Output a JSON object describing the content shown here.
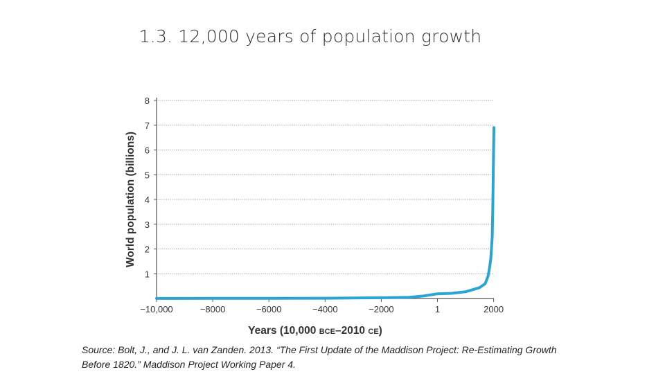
{
  "slide": {
    "title": "1.3. 12,000 years of population growth",
    "source_line1": "Source: Bolt, J., and J. L. van Zanden. 2013. “The First Update of the Maddison Project: Re-Estimating Growth",
    "source_line2": "Before 1820.” Maddison Project Working Paper 4."
  },
  "chart_data": {
    "type": "line",
    "title": "",
    "xlabel_main": "Years (10,000 ",
    "xlabel_bce": "BCE",
    "xlabel_mid": "–2010 ",
    "xlabel_ce": "CE",
    "xlabel_end": ")",
    "ylabel": "World population (billions)",
    "xlim": [
      -10000,
      2010
    ],
    "ylim": [
      0,
      8
    ],
    "x_ticks": [
      -10000,
      -8000,
      -6000,
      -4000,
      -2000,
      1,
      2000
    ],
    "x_tick_labels": [
      "−10,000",
      "−8000",
      "−6000",
      "−4000",
      "−2000",
      "1",
      "2000"
    ],
    "y_ticks": [
      1,
      2,
      3,
      4,
      5,
      6,
      7,
      8
    ],
    "y_tick_labels": [
      "1",
      "2",
      "3",
      "4",
      "5",
      "6",
      "7",
      "8"
    ],
    "grid": true,
    "series": [
      {
        "color": "#2aa4d4",
        "x": [
          -10000,
          -8000,
          -6000,
          -4000,
          -2000,
          -1000,
          -500,
          1,
          500,
          1000,
          1500,
          1700,
          1800,
          1850,
          1900,
          1950,
          1970,
          1990,
          2000,
          2010
        ],
        "y": [
          0.004,
          0.005,
          0.007,
          0.01,
          0.03,
          0.05,
          0.1,
          0.19,
          0.21,
          0.27,
          0.44,
          0.6,
          0.9,
          1.2,
          1.6,
          2.5,
          3.7,
          5.3,
          6.1,
          6.9
        ]
      }
    ]
  }
}
